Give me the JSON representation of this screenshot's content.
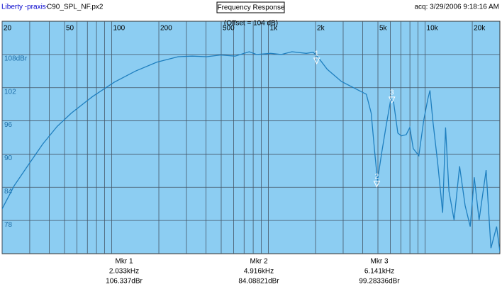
{
  "header": {
    "app": "Liberty -praxis-",
    "file": "C90_SPL_NF.px2",
    "acq": "acq: 3/29/2006 9:18:16 AM"
  },
  "chart_data": {
    "type": "line",
    "title": "Frequency Response",
    "annotation": "(Offset = 104 dB)",
    "log_x": true,
    "grid": true,
    "background": "#8ccdf2",
    "xlim": [
      20,
      30000
    ],
    "ylim": [
      72,
      114
    ],
    "xticks": [
      20,
      50,
      100,
      200,
      500,
      {
        "value": 1000,
        "label": "1k"
      },
      {
        "value": 2000,
        "label": "2k"
      },
      {
        "value": 5000,
        "label": "5k"
      },
      {
        "value": 10000,
        "label": "10k"
      },
      {
        "value": 20000,
        "label": "20k"
      }
    ],
    "xminor_grid": [
      30,
      40,
      60,
      70,
      80,
      90,
      300,
      400,
      600,
      700,
      800,
      900,
      3000,
      4000,
      6000,
      7000,
      8000,
      9000
    ],
    "yticks": [
      {
        "value": 108,
        "label": "108dBr"
      },
      102,
      96,
      90,
      84,
      78
    ],
    "x": [
      20,
      23.9,
      29.5,
      36.3,
      44.9,
      55.3,
      75.6,
      103.9,
      141.9,
      194,
      266,
      327,
      404,
      497,
      613,
      755,
      839,
      1035,
      1210,
      1415,
      1745,
      1934,
      2100,
      2377,
      2930,
      3609,
      4220,
      4530,
      4770,
      4970,
      5290,
      5620,
      6040,
      6300,
      6700,
      7050,
      7580,
      7990,
      8400,
      9120,
      9800,
      10400,
      10740,
      11200,
      12030,
      12940,
      13500,
      14200,
      15300,
      16600,
      18000,
      19400,
      20600,
      22100,
      24500,
      26300,
      28600,
      30000
    ],
    "series": [
      {
        "color": "#1f7fbf",
        "values": [
          80.1,
          84.3,
          88.1,
          91.8,
          95.0,
          97.4,
          100.4,
          103.0,
          105.0,
          106.6,
          107.6,
          107.7,
          107.6,
          107.9,
          107.7,
          108.5,
          108.0,
          108.2,
          108.0,
          108.5,
          108.2,
          108.4,
          107.3,
          105.3,
          103.1,
          101.8,
          100.8,
          97.4,
          90.3,
          85.2,
          90.3,
          94.8,
          99.9,
          99.3,
          93.8,
          93.3,
          93.5,
          94.8,
          91.0,
          89.7,
          96.1,
          99.9,
          101.5,
          96.1,
          88.4,
          79.4,
          94.8,
          83.3,
          78.1,
          87.8,
          80.7,
          76.9,
          85.8,
          78.1,
          87.1,
          73.0,
          76.9,
          72.4
        ]
      }
    ],
    "markers": [
      {
        "name": "Mkr 1",
        "symbol": "1",
        "freq": 2033,
        "freq_label": "2.033kHz",
        "level": 106.337,
        "level_label": "106.337dBr"
      },
      {
        "name": "Mkr 2",
        "symbol": "2",
        "freq": 4916,
        "freq_label": "4.916kHz",
        "level": 84.08821,
        "level_label": "84.08821dBr"
      },
      {
        "name": "Mkr 3",
        "symbol": "3",
        "freq": 6141,
        "freq_label": "6.141kHz",
        "level": 99.28336,
        "level_label": "99.28336dBr"
      }
    ]
  }
}
